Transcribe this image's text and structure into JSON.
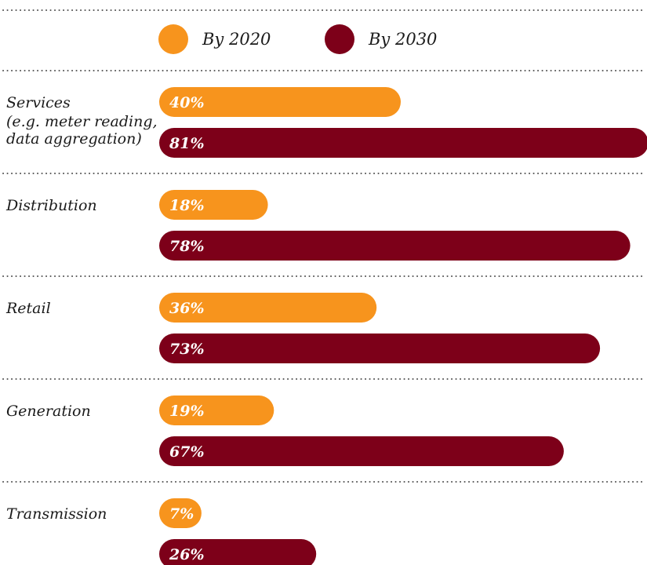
{
  "chart_data": {
    "type": "bar",
    "orientation": "horizontal",
    "categories": [
      [
        "Services",
        "(e.g. meter reading,",
        "data aggregation)"
      ],
      [
        "Distribution"
      ],
      [
        "Retail"
      ],
      [
        "Generation"
      ],
      [
        "Transmission"
      ]
    ],
    "series": [
      {
        "name": "By 2020",
        "color": "#f7941d",
        "values": [
          40,
          18,
          36,
          19,
          7
        ],
        "labels": [
          "40%",
          "18%",
          "36%",
          "19%",
          "7%"
        ]
      },
      {
        "name": "By 2030",
        "color": "#7d0019",
        "values": [
          81,
          78,
          73,
          67,
          26
        ],
        "labels": [
          "81%",
          "78%",
          "73%",
          "67%",
          "26%"
        ]
      }
    ],
    "xlim": [
      0,
      100
    ],
    "grid": false,
    "legend_position": "top"
  }
}
